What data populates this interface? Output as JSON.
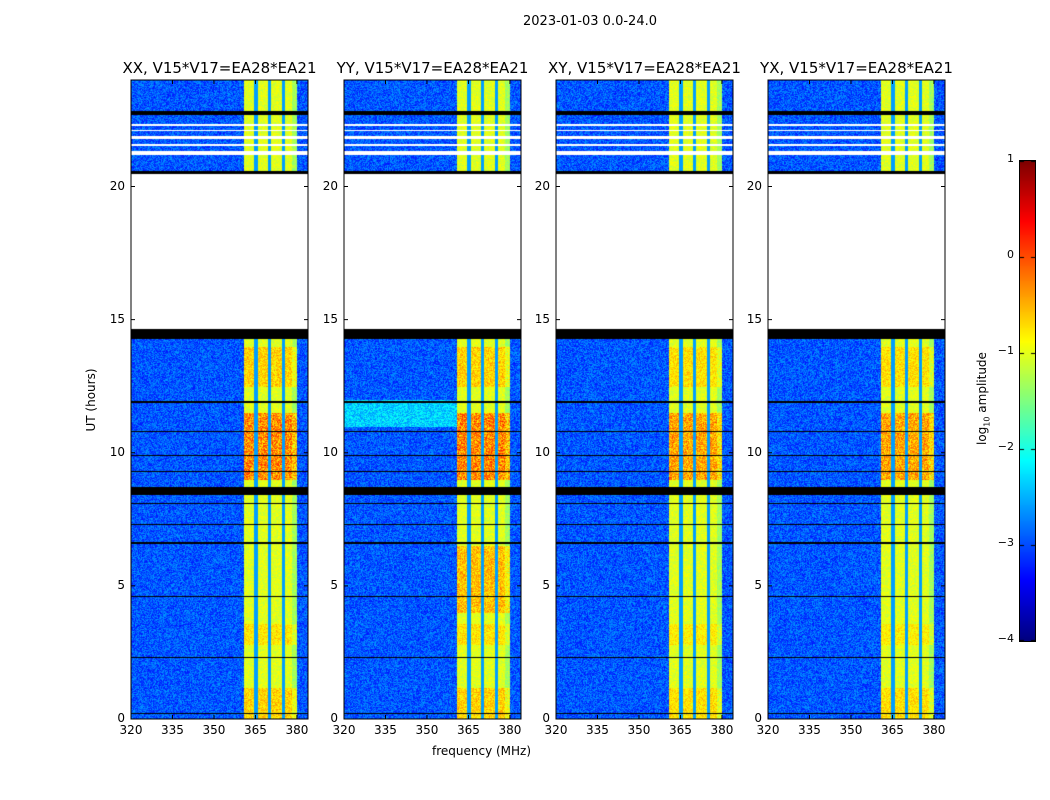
{
  "chart_data": {
    "type": "heatmap",
    "title": "2023-01-03 0.0-24.0",
    "xlabel": "frequency (MHz)",
    "ylabel": "UT (hours)",
    "xlim": [
      320,
      384
    ],
    "ylim": [
      0,
      24
    ],
    "xticks": [
      "320",
      "335",
      "350",
      "365",
      "380"
    ],
    "yticks": [
      "0",
      "5",
      "10",
      "15",
      "20"
    ],
    "panels": [
      {
        "title": "XX, V15*V17=EA28*EA21"
      },
      {
        "title": "YY, V15*V17=EA28*EA21"
      },
      {
        "title": "XY, V15*V17=EA28*EA21"
      },
      {
        "title": "YX, V15*V17=EA28*EA21"
      }
    ],
    "band_MHz": [
      360.5,
      380
    ],
    "spectral_window_edges_MHz": [
      365,
      370,
      375
    ],
    "flagged_white_hours": [
      [
        14.67,
        20.5
      ],
      [
        21.2,
        21.35
      ],
      [
        21.55,
        21.6
      ],
      [
        21.8,
        21.9
      ],
      [
        22.1,
        22.15
      ],
      [
        22.3,
        22.35
      ]
    ],
    "flagged_black_hours": [
      [
        14.3,
        14.67
      ],
      [
        8.45,
        8.75
      ],
      [
        20.5,
        20.6
      ],
      [
        22.7,
        22.85
      ],
      [
        0.2,
        0.25
      ],
      [
        2.3,
        2.35
      ],
      [
        4.6,
        4.65
      ],
      [
        6.6,
        6.65
      ],
      [
        7.3,
        7.35
      ],
      [
        8.1,
        8.15
      ],
      [
        9.3,
        9.35
      ],
      [
        9.9,
        9.95
      ],
      [
        10.8,
        10.85
      ],
      [
        11.9,
        11.95
      ]
    ],
    "colorbar": {
      "label": "log10 amplitude",
      "label_main": "log",
      "label_sub": "10",
      "label_rest": " amplitude",
      "range": [
        -4,
        1
      ],
      "ticks": [
        "1",
        "0",
        "−1",
        "−2",
        "−3",
        "−4"
      ],
      "colormap": "jet"
    }
  }
}
